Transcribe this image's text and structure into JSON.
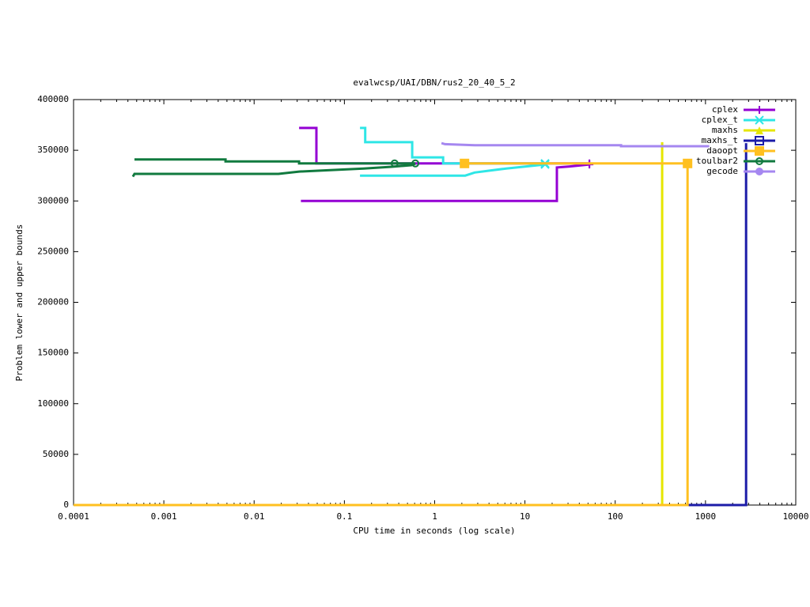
{
  "chart_data": {
    "type": "line",
    "title": "evalwcsp/UAI/DBN/rus2_20_40_5_2",
    "x_label": "CPU time in seconds (log scale)",
    "y_label": "Problem lower and upper bounds",
    "x_log": true,
    "xlim": [
      0.0001,
      10000
    ],
    "xticks": [
      0.0001,
      0.001,
      0.01,
      0.1,
      1,
      10,
      100,
      1000,
      10000
    ],
    "ylim": [
      0,
      400000
    ],
    "yticks": [
      0,
      50000,
      100000,
      150000,
      200000,
      250000,
      300000,
      350000,
      400000
    ],
    "legend": "top-right",
    "series": [
      {
        "name": "cplex",
        "color": "#9400d3",
        "marker": "plus",
        "x": [
          0.0315,
          0.049,
          0.049,
          51.8,
          null,
          0.033,
          22.6,
          22.6,
          31.3,
          51.8
        ],
        "values": [
          372000,
          372000,
          337000,
          337000,
          null,
          300000,
          300000,
          333000,
          334000,
          336000
        ],
        "marker_indices": [
          3,
          9
        ]
      },
      {
        "name": "cplex_t",
        "color": "#2ee6e6",
        "marker": "cross",
        "x": [
          0.149,
          0.17,
          0.17,
          0.564,
          0.564,
          1.24,
          1.24,
          16.7,
          null,
          0.149,
          2.18,
          2.77,
          6.2,
          16.7
        ],
        "values": [
          372000,
          372000,
          358000,
          358000,
          343000,
          343000,
          337000,
          337000,
          null,
          325000,
          325000,
          328000,
          332000,
          336000
        ],
        "marker_indices": [
          7,
          13
        ]
      },
      {
        "name": "maxhs",
        "color": "#e6e600",
        "marker": "triangle",
        "x": [
          0.0001,
          331,
          331
        ],
        "values": [
          0,
          0,
          358000
        ],
        "marker_indices": []
      },
      {
        "name": "maxhs_t",
        "color": "#1c1ca8",
        "marker": "box",
        "x": [
          0.0001,
          2818,
          2818
        ],
        "values": [
          0,
          0,
          357000
        ],
        "marker_indices": []
      },
      {
        "name": "daoopt",
        "color": "#ffc020",
        "marker": "filled-box",
        "x": [
          2.14,
          633,
          null,
          0.0001,
          633,
          633
        ],
        "values": [
          337000,
          337000,
          null,
          0,
          0,
          337000
        ],
        "marker_indices": [
          0,
          1
        ]
      },
      {
        "name": "toulbar2",
        "color": "#117a3f",
        "marker": "circle",
        "x": [
          0.000473,
          0.00482,
          0.00482,
          0.0315,
          0.0315,
          0.36,
          0.611,
          null,
          0.000454,
          0.000473,
          0.0186,
          0.0315,
          0.0735,
          0.164,
          0.334,
          0.552,
          0.611
        ],
        "values": [
          341000,
          341000,
          339000,
          339000,
          337000,
          337000,
          337000,
          null,
          324000,
          326700,
          326700,
          329000,
          330500,
          332000,
          333700,
          335300,
          336800
        ],
        "marker_indices": [
          5,
          6
        ]
      },
      {
        "name": "gecode",
        "color": "#a587f0",
        "marker": "filled-circle",
        "x": [
          1.19,
          1.3,
          2.77,
          116,
          116,
          1100
        ],
        "values": [
          357000,
          356000,
          355000,
          355000,
          354000,
          354000
        ],
        "marker_indices": []
      }
    ]
  }
}
